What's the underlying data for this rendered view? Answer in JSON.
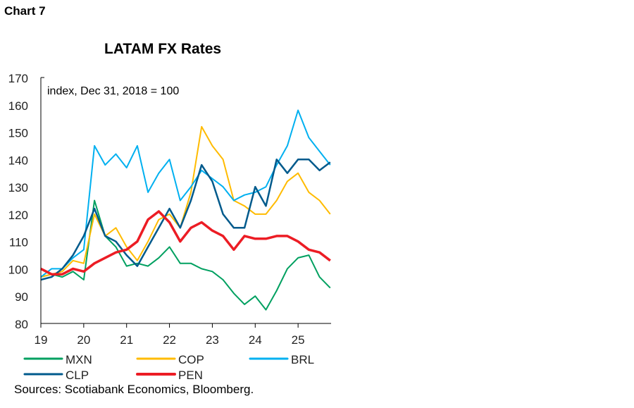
{
  "header": {
    "chart_label": "Chart 7"
  },
  "footer": {
    "sources": "Sources: Scotiabank Economics, Bloomberg."
  },
  "chart_data": {
    "type": "line",
    "title": "LATAM FX Rates",
    "annotation": "index, Dec 31, 2018 = 100",
    "xlabel": "",
    "ylabel": "",
    "xlim": [
      2019,
      2025.77
    ],
    "ylim": [
      80,
      170
    ],
    "yticks": [
      80,
      90,
      100,
      110,
      120,
      130,
      140,
      150,
      160,
      170
    ],
    "xticks": [
      {
        "value": 2019,
        "label": "19"
      },
      {
        "value": 2020,
        "label": "20"
      },
      {
        "value": 2021,
        "label": "21"
      },
      {
        "value": 2022,
        "label": "22"
      },
      {
        "value": 2023,
        "label": "23"
      },
      {
        "value": 2024,
        "label": "24"
      },
      {
        "value": 2025,
        "label": "25"
      }
    ],
    "grid": false,
    "legend_placement": "bottom",
    "x": [
      2019.0,
      2019.25,
      2019.5,
      2019.75,
      2020.0,
      2020.25,
      2020.5,
      2020.75,
      2021.0,
      2021.25,
      2021.5,
      2021.75,
      2022.0,
      2022.25,
      2022.5,
      2022.75,
      2023.0,
      2023.25,
      2023.5,
      2023.75,
      2024.0,
      2024.25,
      2024.5,
      2024.75,
      2025.0,
      2025.25,
      2025.5,
      2025.75
    ],
    "series": [
      {
        "name": "MXN",
        "color": "#00a060",
        "width": 2,
        "values": [
          97,
          98,
          97,
          99,
          96,
          125,
          112,
          108,
          101,
          102,
          101,
          104,
          108,
          102,
          102,
          100,
          99,
          96,
          91,
          87,
          90,
          85,
          92,
          100,
          104,
          105,
          97,
          93
        ]
      },
      {
        "name": "COP",
        "color": "#ffbb00",
        "width": 2,
        "values": [
          97,
          98,
          99,
          103,
          102,
          120,
          112,
          115,
          108,
          103,
          110,
          118,
          120,
          115,
          128,
          152,
          145,
          140,
          125,
          123,
          120,
          120,
          125,
          132,
          135,
          128,
          125,
          120
        ]
      },
      {
        "name": "BRL",
        "color": "#00b0f0",
        "width": 2,
        "values": [
          97,
          100,
          100,
          104,
          107,
          145,
          138,
          142,
          137,
          145,
          128,
          135,
          140,
          125,
          130,
          136,
          133,
          130,
          125,
          127,
          128,
          130,
          138,
          145,
          158,
          148,
          143,
          138
        ]
      },
      {
        "name": "CLP",
        "color": "#005a8c",
        "width": 2.5,
        "values": [
          96,
          97,
          100,
          105,
          112,
          122,
          112,
          110,
          105,
          101,
          108,
          115,
          122,
          115,
          125,
          138,
          132,
          120,
          115,
          115,
          130,
          123,
          140,
          135,
          140,
          140,
          136,
          139
        ]
      },
      {
        "name": "PEN",
        "color": "#ec1c24",
        "width": 3.5,
        "values": [
          100,
          98,
          98,
          100,
          99,
          102,
          104,
          106,
          107,
          110,
          118,
          121,
          117,
          110,
          115,
          117,
          114,
          112,
          107,
          112,
          111,
          111,
          112,
          112,
          110,
          107,
          106,
          103
        ]
      }
    ]
  }
}
